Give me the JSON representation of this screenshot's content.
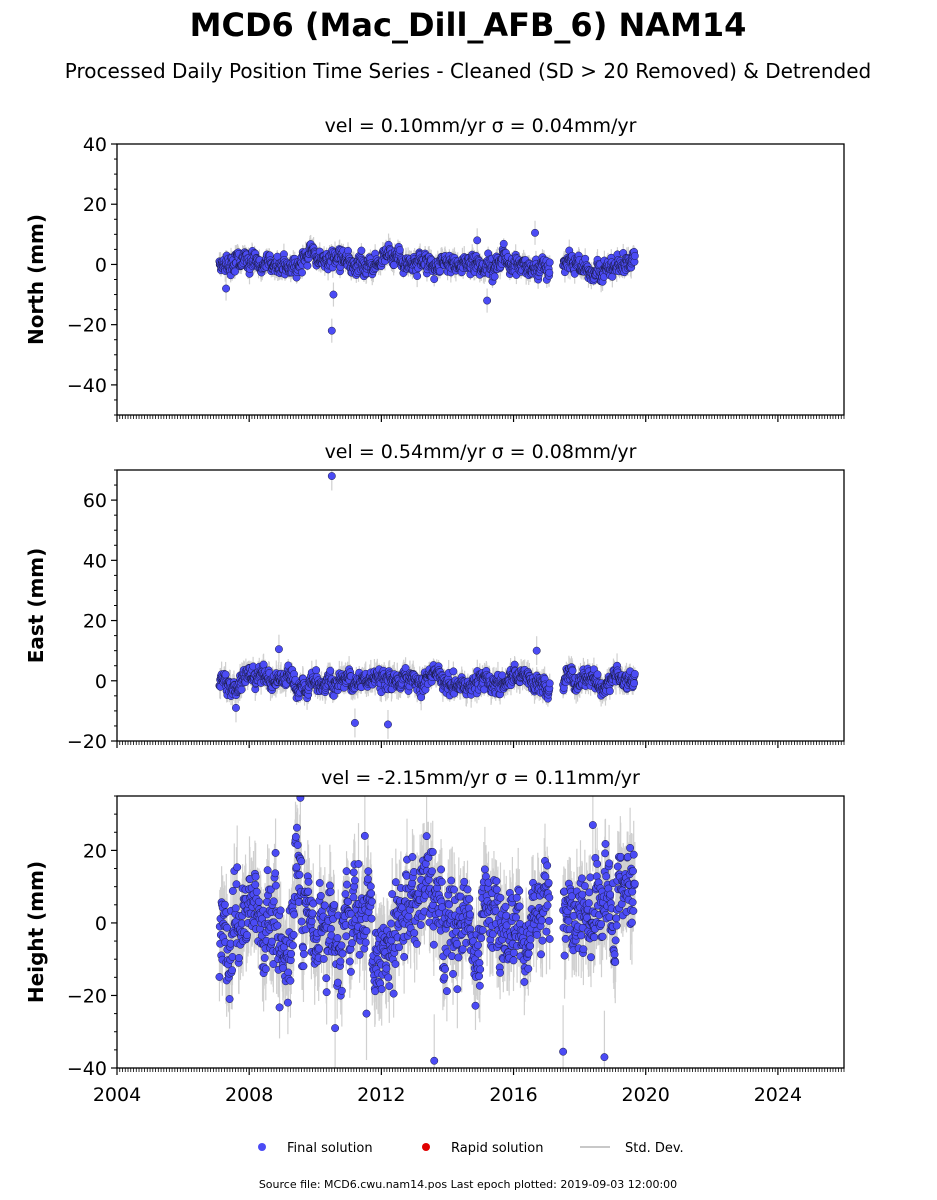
{
  "figure": {
    "title": "MCD6 (Mac_Dill_AFB_6) NAM14",
    "subtitle": "Processed Daily Position Time Series - Cleaned (SD > 20 Removed) & Detrended",
    "footer": "Source file: MCD6.cwu.nam14.pos  Last epoch plotted: 2019-09-03 12:00:00"
  },
  "legend": {
    "final": "Final solution",
    "rapid": "Rapid solution",
    "std": "Std. Dev."
  },
  "colors": {
    "final": "#4b4bf5",
    "final_edge": "#1a1a40",
    "rapid": "#e00000",
    "std": "#c8c8c8"
  },
  "chart_data": [
    {
      "type": "scatter",
      "title": "vel = 0.10mm/yr   σ = 0.04mm/yr",
      "ylabel": "North (mm)",
      "xlim": [
        2004,
        2026
      ],
      "ylim": [
        -50,
        40
      ],
      "xticks": [
        2004,
        2008,
        2012,
        2016,
        2020,
        2024
      ],
      "yticks": [
        -40,
        -20,
        0,
        20,
        40
      ],
      "time_span": [
        2007.1,
        2019.67
      ],
      "gap": [
        2017.1,
        2017.5
      ],
      "noise_sd": 1.8,
      "error_bar": 2.5,
      "notable_points": [
        {
          "x": 2010.5,
          "y": -22.0
        },
        {
          "x": 2010.55,
          "y": -10.0
        },
        {
          "x": 2016.65,
          "y": 10.5
        },
        {
          "x": 2015.2,
          "y": -12.0
        },
        {
          "x": 2014.9,
          "y": 8.0
        },
        {
          "x": 2007.3,
          "y": -8.0
        }
      ],
      "series": [
        {
          "name": "Final solution"
        }
      ]
    },
    {
      "type": "scatter",
      "title": "vel = 0.54mm/yr   σ = 0.08mm/yr",
      "ylabel": "East (mm)",
      "xlim": [
        2004,
        2026
      ],
      "ylim": [
        -20,
        70
      ],
      "xticks": [
        2004,
        2008,
        2012,
        2016,
        2020,
        2024
      ],
      "yticks": [
        -20,
        0,
        20,
        40,
        60
      ],
      "time_span": [
        2007.1,
        2019.67
      ],
      "gap": [
        2017.1,
        2017.5
      ],
      "noise_sd": 1.8,
      "error_bar": 3.0,
      "notable_points": [
        {
          "x": 2010.5,
          "y": 68.0
        },
        {
          "x": 2008.9,
          "y": 10.5
        },
        {
          "x": 2016.7,
          "y": 10.0
        },
        {
          "x": 2011.2,
          "y": -14.0
        },
        {
          "x": 2012.2,
          "y": -14.5
        },
        {
          "x": 2007.6,
          "y": -9.0
        }
      ],
      "series": [
        {
          "name": "Final solution"
        }
      ]
    },
    {
      "type": "scatter",
      "title": "vel = -2.15mm/yr   σ = 0.11mm/yr",
      "ylabel": "Height (mm)",
      "xlim": [
        2004,
        2026
      ],
      "ylim": [
        -40,
        35
      ],
      "xticks": [
        2004,
        2008,
        2012,
        2016,
        2020,
        2024
      ],
      "yticks": [
        -40,
        -20,
        0,
        20
      ],
      "time_span": [
        2007.1,
        2019.67
      ],
      "gap": [
        2017.1,
        2017.5
      ],
      "noise_sd": 7.0,
      "error_bar": 8.0,
      "notable_points": [
        {
          "x": 2009.55,
          "y": 34.5
        },
        {
          "x": 2013.6,
          "y": -38.0
        },
        {
          "x": 2018.75,
          "y": -37.0
        },
        {
          "x": 2018.4,
          "y": 27.0
        },
        {
          "x": 2017.5,
          "y": -35.5
        },
        {
          "x": 2010.6,
          "y": -29.0
        },
        {
          "x": 2011.55,
          "y": -25.0
        },
        {
          "x": 2011.5,
          "y": 24.0
        }
      ],
      "series": [
        {
          "name": "Final solution"
        }
      ]
    }
  ]
}
